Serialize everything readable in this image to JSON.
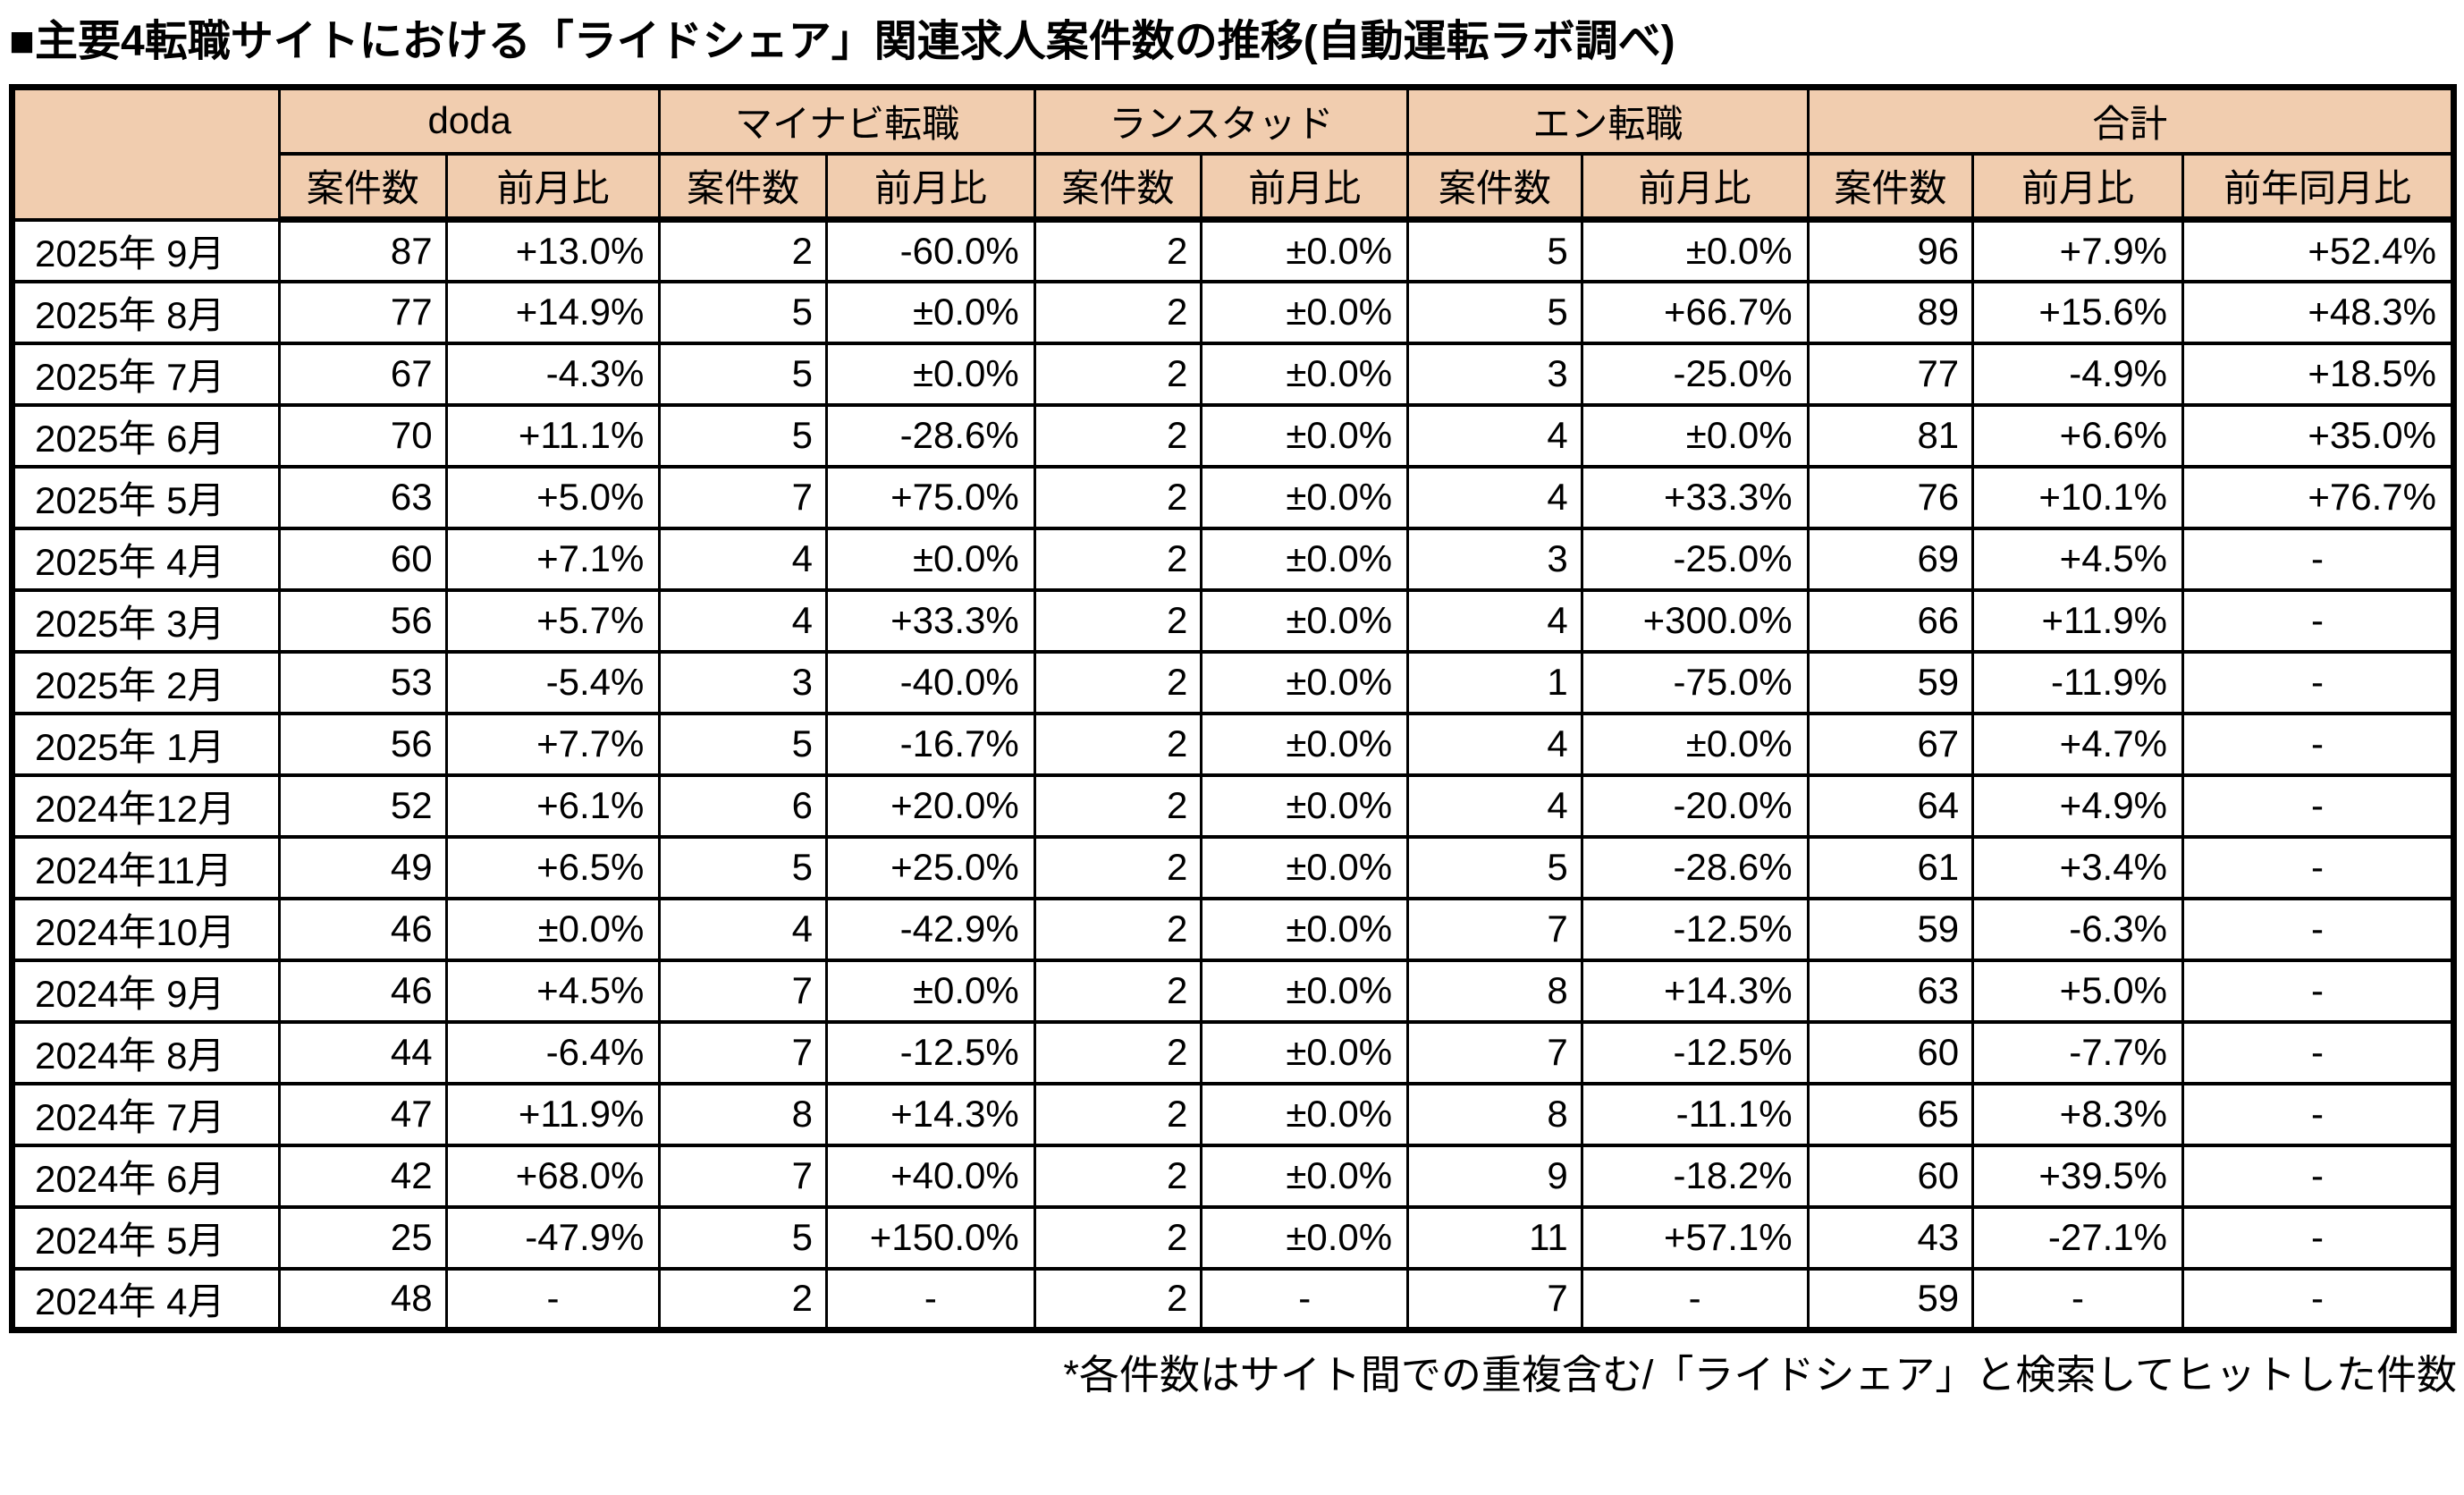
{
  "title": "■主要4転職サイトにおける「ライドシェア」関連求人案件数の推移(自動運転ラボ調べ)",
  "footnote": "*各件数はサイト間での重複含む/「ライドシェア」と検索してヒットした件数",
  "colors": {
    "header_bg": "#F1CDAF",
    "border": "#000000"
  },
  "table": {
    "groups": [
      {
        "label": "doda",
        "cols": [
          "案件数",
          "前月比"
        ]
      },
      {
        "label": "マイナビ転職",
        "cols": [
          "案件数",
          "前月比"
        ]
      },
      {
        "label": "ランスタッド",
        "cols": [
          "案件数",
          "前月比"
        ]
      },
      {
        "label": "エン転職",
        "cols": [
          "案件数",
          "前月比"
        ]
      },
      {
        "label": "合計",
        "cols": [
          "案件数",
          "前月比",
          "前年同月比"
        ]
      }
    ],
    "rows": [
      {
        "month": "2025年 9月",
        "values": [
          "87",
          "+13.0%",
          "2",
          "-60.0%",
          "2",
          "±0.0%",
          "5",
          "±0.0%",
          "96",
          "+7.9%",
          "+52.4%"
        ]
      },
      {
        "month": "2025年 8月",
        "values": [
          "77",
          "+14.9%",
          "5",
          "±0.0%",
          "2",
          "±0.0%",
          "5",
          "+66.7%",
          "89",
          "+15.6%",
          "+48.3%"
        ]
      },
      {
        "month": "2025年 7月",
        "values": [
          "67",
          "-4.3%",
          "5",
          "±0.0%",
          "2",
          "±0.0%",
          "3",
          "-25.0%",
          "77",
          "-4.9%",
          "+18.5%"
        ]
      },
      {
        "month": "2025年 6月",
        "values": [
          "70",
          "+11.1%",
          "5",
          "-28.6%",
          "2",
          "±0.0%",
          "4",
          "±0.0%",
          "81",
          "+6.6%",
          "+35.0%"
        ]
      },
      {
        "month": "2025年 5月",
        "values": [
          "63",
          "+5.0%",
          "7",
          "+75.0%",
          "2",
          "±0.0%",
          "4",
          "+33.3%",
          "76",
          "+10.1%",
          "+76.7%"
        ]
      },
      {
        "month": "2025年 4月",
        "values": [
          "60",
          "+7.1%",
          "4",
          "±0.0%",
          "2",
          "±0.0%",
          "3",
          "-25.0%",
          "69",
          "+4.5%",
          "-"
        ]
      },
      {
        "month": "2025年 3月",
        "values": [
          "56",
          "+5.7%",
          "4",
          "+33.3%",
          "2",
          "±0.0%",
          "4",
          "+300.0%",
          "66",
          "+11.9%",
          "-"
        ]
      },
      {
        "month": "2025年 2月",
        "values": [
          "53",
          "-5.4%",
          "3",
          "-40.0%",
          "2",
          "±0.0%",
          "1",
          "-75.0%",
          "59",
          "-11.9%",
          "-"
        ]
      },
      {
        "month": "2025年 1月",
        "values": [
          "56",
          "+7.7%",
          "5",
          "-16.7%",
          "2",
          "±0.0%",
          "4",
          "±0.0%",
          "67",
          "+4.7%",
          "-"
        ]
      },
      {
        "month": "2024年12月",
        "values": [
          "52",
          "+6.1%",
          "6",
          "+20.0%",
          "2",
          "±0.0%",
          "4",
          "-20.0%",
          "64",
          "+4.9%",
          "-"
        ]
      },
      {
        "month": "2024年11月",
        "values": [
          "49",
          "+6.5%",
          "5",
          "+25.0%",
          "2",
          "±0.0%",
          "5",
          "-28.6%",
          "61",
          "+3.4%",
          "-"
        ]
      },
      {
        "month": "2024年10月",
        "values": [
          "46",
          "±0.0%",
          "4",
          "-42.9%",
          "2",
          "±0.0%",
          "7",
          "-12.5%",
          "59",
          "-6.3%",
          "-"
        ]
      },
      {
        "month": "2024年 9月",
        "values": [
          "46",
          "+4.5%",
          "7",
          "±0.0%",
          "2",
          "±0.0%",
          "8",
          "+14.3%",
          "63",
          "+5.0%",
          "-"
        ]
      },
      {
        "month": "2024年 8月",
        "values": [
          "44",
          "-6.4%",
          "7",
          "-12.5%",
          "2",
          "±0.0%",
          "7",
          "-12.5%",
          "60",
          "-7.7%",
          "-"
        ]
      },
      {
        "month": "2024年 7月",
        "values": [
          "47",
          "+11.9%",
          "8",
          "+14.3%",
          "2",
          "±0.0%",
          "8",
          "-11.1%",
          "65",
          "+8.3%",
          "-"
        ]
      },
      {
        "month": "2024年 6月",
        "values": [
          "42",
          "+68.0%",
          "7",
          "+40.0%",
          "2",
          "±0.0%",
          "9",
          "-18.2%",
          "60",
          "+39.5%",
          "-"
        ]
      },
      {
        "month": "2024年 5月",
        "values": [
          "25",
          "-47.9%",
          "5",
          "+150.0%",
          "2",
          "±0.0%",
          "11",
          "+57.1%",
          "43",
          "-27.1%",
          "-"
        ]
      },
      {
        "month": "2024年 4月",
        "values": [
          "48",
          "-",
          "2",
          "-",
          "2",
          "-",
          "7",
          "-",
          "59",
          "-",
          "-"
        ]
      }
    ]
  },
  "chart_data": {
    "type": "table",
    "title": "主要4転職サイトにおける「ライドシェア」関連求人案件数の推移(自動運転ラボ調べ)",
    "categories": [
      "2025年9月",
      "2025年8月",
      "2025年7月",
      "2025年6月",
      "2025年5月",
      "2025年4月",
      "2025年3月",
      "2025年2月",
      "2025年1月",
      "2024年12月",
      "2024年11月",
      "2024年10月",
      "2024年9月",
      "2024年8月",
      "2024年7月",
      "2024年6月",
      "2024年5月",
      "2024年4月"
    ],
    "series": [
      {
        "name": "doda 案件数",
        "values": [
          87,
          77,
          67,
          70,
          63,
          60,
          56,
          53,
          56,
          52,
          49,
          46,
          46,
          44,
          47,
          42,
          25,
          48
        ]
      },
      {
        "name": "マイナビ転職 案件数",
        "values": [
          2,
          5,
          5,
          5,
          7,
          4,
          4,
          3,
          5,
          6,
          5,
          4,
          7,
          7,
          8,
          7,
          5,
          2
        ]
      },
      {
        "name": "ランスタッド 案件数",
        "values": [
          2,
          2,
          2,
          2,
          2,
          2,
          2,
          2,
          2,
          2,
          2,
          2,
          2,
          2,
          2,
          2,
          2,
          2
        ]
      },
      {
        "name": "エン転職 案件数",
        "values": [
          5,
          5,
          3,
          4,
          4,
          3,
          4,
          1,
          4,
          4,
          5,
          7,
          8,
          7,
          8,
          9,
          11,
          7
        ]
      },
      {
        "name": "合計 案件数",
        "values": [
          96,
          89,
          77,
          81,
          76,
          69,
          66,
          59,
          67,
          64,
          61,
          59,
          63,
          60,
          65,
          60,
          43,
          59
        ]
      },
      {
        "name": "合計 前年同月比",
        "values": [
          "+52.4%",
          "+48.3%",
          "+18.5%",
          "+35.0%",
          "+76.7%",
          "-",
          "-",
          "-",
          "-",
          "-",
          "-",
          "-",
          "-",
          "-",
          "-",
          "-",
          "-",
          "-"
        ]
      }
    ]
  }
}
